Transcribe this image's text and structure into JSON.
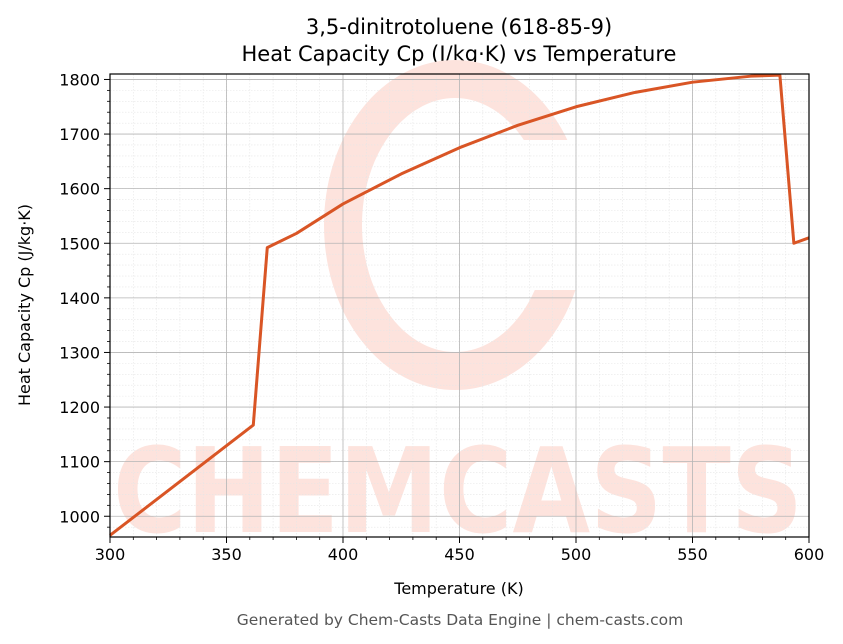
{
  "chart_data": {
    "type": "line",
    "title_line1": "3,5-dinitrotoluene (618-85-9)",
    "title_line2": "Heat Capacity Cp (J/kg·K) vs Temperature",
    "xlabel": "Temperature (K)",
    "ylabel": "Heat Capacity Cp (J/kg·K)",
    "xlim": [
      300,
      600
    ],
    "ylim": [
      962,
      1810
    ],
    "xticks": [
      300,
      350,
      400,
      450,
      500,
      550,
      600
    ],
    "yticks": [
      1000,
      1100,
      1200,
      1300,
      1400,
      1500,
      1600,
      1700,
      1800
    ],
    "grid": true,
    "line_color": "#d95525",
    "series": [
      {
        "x": [
          300,
          361.5,
          367.5,
          380,
          400,
          425,
          450,
          475,
          500,
          525,
          550,
          575,
          587.5,
          593.5,
          600
        ],
        "y": [
          965,
          1167,
          1492,
          1518,
          1572,
          1627,
          1675,
          1716,
          1750,
          1776,
          1795,
          1806,
          1808,
          1500,
          1510
        ]
      }
    ],
    "footer": "Generated by Chem-Casts Data Engine | chem-casts.com",
    "watermark": "CHEMCASTS"
  }
}
